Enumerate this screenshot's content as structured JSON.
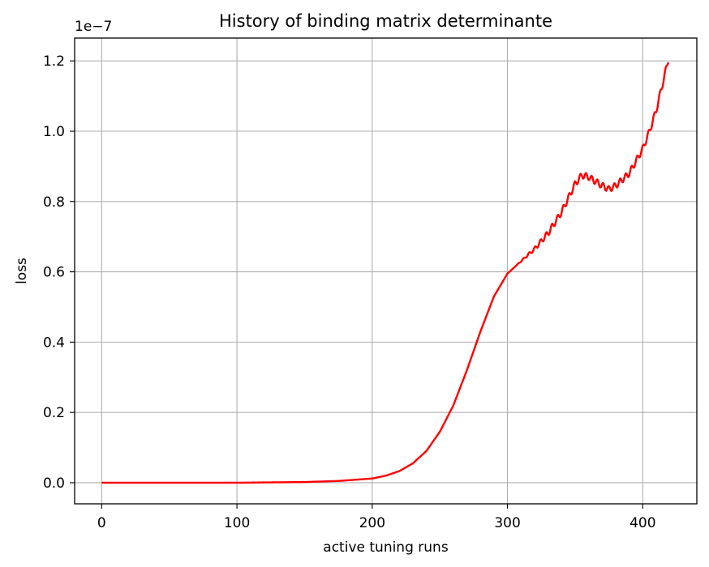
{
  "chart_data": {
    "type": "line",
    "title": "History of binding matrix determinante",
    "xlabel": "active tuning runs",
    "ylabel": "loss",
    "y_offset_label": "1e−7",
    "xlim": [
      -20,
      440
    ],
    "ylim": [
      -0.06,
      1.265
    ],
    "x_ticks": [
      0,
      100,
      200,
      300,
      400
    ],
    "x_tick_labels": [
      "0",
      "100",
      "200",
      "300",
      "400"
    ],
    "y_ticks": [
      0.0,
      0.2,
      0.4,
      0.6,
      0.8,
      1.0,
      1.2
    ],
    "y_tick_labels": [
      "0.0",
      "0.2",
      "0.4",
      "0.6",
      "0.8",
      "1.0",
      "1.2"
    ],
    "grid": true,
    "line_color": "#ff0000",
    "series": [
      {
        "x": [
          0,
          100,
          150,
          175,
          200,
          210,
          220,
          230,
          240,
          250,
          260,
          270,
          280,
          290,
          300,
          310,
          320,
          330,
          340,
          350,
          355,
          360,
          370,
          375,
          380,
          390,
          400,
          405,
          410,
          415,
          419
        ],
        "y": [
          0.0,
          0.0,
          0.002,
          0.005,
          0.012,
          0.02,
          0.033,
          0.055,
          0.09,
          0.145,
          0.22,
          0.32,
          0.43,
          0.53,
          0.595,
          0.63,
          0.665,
          0.71,
          0.77,
          0.85,
          0.875,
          0.87,
          0.845,
          0.835,
          0.845,
          0.88,
          0.95,
          1.0,
          1.06,
          1.14,
          1.205
        ]
      }
    ]
  }
}
